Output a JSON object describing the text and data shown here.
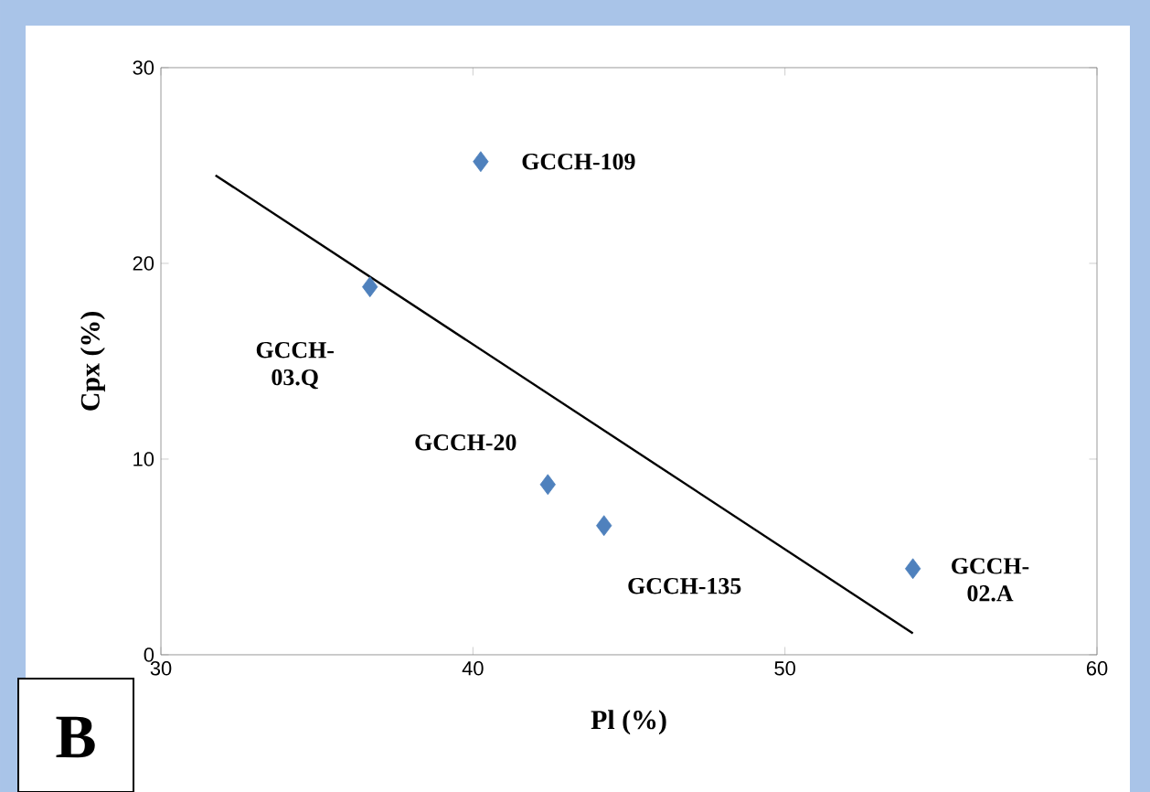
{
  "chart_data": {
    "type": "scatter",
    "xlabel": "Pl (%)",
    "ylabel": "Cpx (%)",
    "xlim": [
      30,
      60
    ],
    "ylim": [
      0,
      30
    ],
    "xticks": [
      30,
      40,
      50,
      60
    ],
    "yticks": [
      0,
      10,
      20,
      30
    ],
    "grid": false,
    "marker": "diamond",
    "series": [
      {
        "color": "#4f81bd",
        "x": [
          40.25,
          36.7,
          42.4,
          44.2,
          54.1
        ],
        "values": [
          25.2,
          18.8,
          8.7,
          6.6,
          4.4
        ]
      },
      {
        "type": "line",
        "marker": "none",
        "color": "#000000",
        "x": [
          31.75,
          54.1
        ],
        "values": [
          24.5,
          1.1
        ]
      }
    ],
    "annotations": [
      {
        "text": "GCCH-109",
        "x": 40.25,
        "y": 25.2
      },
      {
        "text": "GCCH-03.Q",
        "x": 36.7,
        "y": 18.8
      },
      {
        "text": "GCCH-20",
        "x": 42.4,
        "y": 8.7
      },
      {
        "text": "GCCH-135",
        "x": 44.2,
        "y": 6.6
      },
      {
        "text": "GCCH-02.A",
        "x": 54.1,
        "y": 4.4
      },
      "B"
    ]
  }
}
